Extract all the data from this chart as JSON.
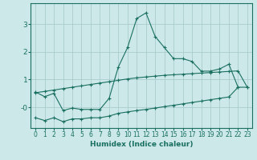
{
  "xlabel": "Humidex (Indice chaleur)",
  "bg_color": "#cce8e8",
  "grid_color": "#aacccc",
  "line_color": "#1a7060",
  "xlim": [
    -0.5,
    23.5
  ],
  "ylim": [
    -0.75,
    3.75
  ],
  "yticks": [
    0,
    1,
    2,
    3
  ],
  "ytick_labels": [
    "-0",
    "1",
    "2",
    "3"
  ],
  "xticks": [
    0,
    1,
    2,
    3,
    4,
    5,
    6,
    7,
    8,
    9,
    10,
    11,
    12,
    13,
    14,
    15,
    16,
    17,
    18,
    19,
    20,
    21,
    22,
    23
  ],
  "line1_x": [
    0,
    1,
    2,
    3,
    4,
    5,
    6,
    7,
    8,
    9,
    10,
    11,
    12,
    13,
    14,
    15,
    16,
    17,
    18,
    19,
    20,
    21,
    22
  ],
  "line1_y": [
    0.55,
    0.38,
    0.5,
    -0.12,
    -0.03,
    -0.08,
    -0.08,
    -0.08,
    0.32,
    1.45,
    2.15,
    3.2,
    3.4,
    2.55,
    2.15,
    1.75,
    1.75,
    1.65,
    1.3,
    1.3,
    1.38,
    1.55,
    0.72
  ],
  "line2_x": [
    0,
    1,
    2,
    3,
    4,
    5,
    6,
    7,
    8,
    9,
    10,
    11,
    12,
    13,
    14,
    15,
    16,
    17,
    18,
    19,
    20,
    21,
    22,
    23
  ],
  "line2_y": [
    0.52,
    0.57,
    0.62,
    0.67,
    0.72,
    0.77,
    0.82,
    0.87,
    0.92,
    0.97,
    1.02,
    1.06,
    1.09,
    1.12,
    1.15,
    1.17,
    1.19,
    1.21,
    1.23,
    1.25,
    1.27,
    1.29,
    1.31,
    0.72
  ],
  "line3_x": [
    0,
    1,
    2,
    3,
    4,
    5,
    6,
    7,
    8,
    9,
    10,
    11,
    12,
    13,
    14,
    15,
    16,
    17,
    18,
    19,
    20,
    21,
    22,
    23
  ],
  "line3_y": [
    -0.38,
    -0.48,
    -0.38,
    -0.52,
    -0.42,
    -0.42,
    -0.38,
    -0.38,
    -0.32,
    -0.22,
    -0.17,
    -0.12,
    -0.08,
    -0.03,
    0.02,
    0.07,
    0.12,
    0.17,
    0.22,
    0.27,
    0.32,
    0.37,
    0.72,
    0.72
  ]
}
